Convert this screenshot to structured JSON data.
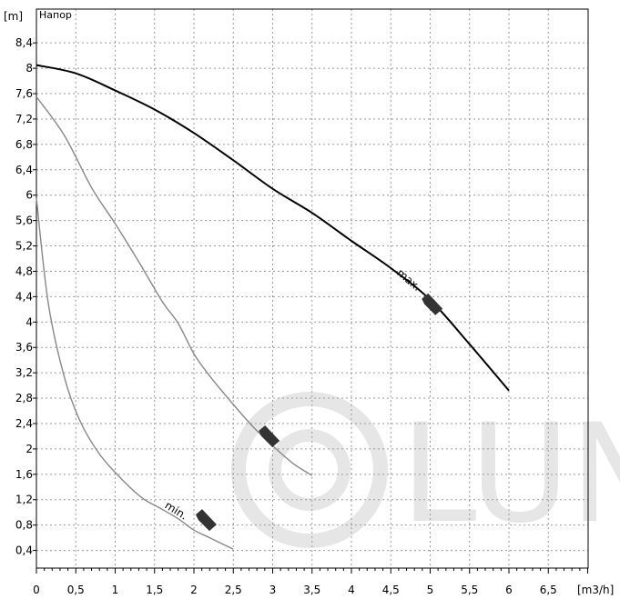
{
  "chart_data": {
    "type": "line",
    "title": "Напор",
    "y_unit": "[m]",
    "x_unit": "[m3/h]",
    "xlim": [
      0,
      7.0
    ],
    "ylim": [
      0,
      8.8
    ],
    "x_ticks": [
      {
        "value": 0,
        "label": "0"
      },
      {
        "value": 0.5,
        "label": "0,5"
      },
      {
        "value": 1,
        "label": "1"
      },
      {
        "value": 1.5,
        "label": "1,5"
      },
      {
        "value": 2,
        "label": "2"
      },
      {
        "value": 2.5,
        "label": "2,5"
      },
      {
        "value": 3,
        "label": "3"
      },
      {
        "value": 3.5,
        "label": "3,5"
      },
      {
        "value": 4,
        "label": "4"
      },
      {
        "value": 4.5,
        "label": "4,5"
      },
      {
        "value": 5,
        "label": "5"
      },
      {
        "value": 5.5,
        "label": "5,5"
      },
      {
        "value": 6,
        "label": "6"
      },
      {
        "value": 6.5,
        "label": "6,5"
      }
    ],
    "y_ticks": [
      {
        "value": 0.4,
        "label": "0,4"
      },
      {
        "value": 0.8,
        "label": "0,8"
      },
      {
        "value": 1.2,
        "label": "1,2"
      },
      {
        "value": 1.6,
        "label": "1,6"
      },
      {
        "value": 2,
        "label": "2"
      },
      {
        "value": 2.4,
        "label": "2,4"
      },
      {
        "value": 2.8,
        "label": "2,8"
      },
      {
        "value": 3.2,
        "label": "3,2"
      },
      {
        "value": 3.6,
        "label": "3,6"
      },
      {
        "value": 4,
        "label": "4"
      },
      {
        "value": 4.4,
        "label": "4,4"
      },
      {
        "value": 4.8,
        "label": "4,8"
      },
      {
        "value": 5.2,
        "label": "5,2"
      },
      {
        "value": 5.6,
        "label": "5,6"
      },
      {
        "value": 6,
        "label": "6"
      },
      {
        "value": 6.4,
        "label": "6,4"
      },
      {
        "value": 6.8,
        "label": "6,8"
      },
      {
        "value": 7.2,
        "label": "7,2"
      },
      {
        "value": 7.6,
        "label": "7,6"
      },
      {
        "value": 8,
        "label": "8"
      },
      {
        "value": 8.4,
        "label": "8,4"
      }
    ],
    "grid": true,
    "series": [
      {
        "name": "max.",
        "color": "#000000",
        "points": [
          [
            0,
            8.05
          ],
          [
            0.5,
            7.92
          ],
          [
            1,
            7.65
          ],
          [
            1.5,
            7.35
          ],
          [
            2,
            6.98
          ],
          [
            2.5,
            6.55
          ],
          [
            3,
            6.1
          ],
          [
            3.5,
            5.72
          ],
          [
            4,
            5.28
          ],
          [
            4.5,
            4.85
          ],
          [
            5,
            4.35
          ],
          [
            5.5,
            3.65
          ],
          [
            6,
            2.92
          ]
        ]
      },
      {
        "name": "",
        "color": "#888888",
        "points": [
          [
            0,
            7.55
          ],
          [
            0.35,
            6.95
          ],
          [
            0.7,
            6.12
          ],
          [
            1,
            5.55
          ],
          [
            1.3,
            4.95
          ],
          [
            1.6,
            4.32
          ],
          [
            1.8,
            3.98
          ],
          [
            2,
            3.5
          ],
          [
            2.2,
            3.15
          ],
          [
            2.5,
            2.7
          ],
          [
            2.75,
            2.35
          ],
          [
            3,
            2.05
          ],
          [
            3.25,
            1.78
          ],
          [
            3.5,
            1.58
          ]
        ]
      },
      {
        "name": "min.",
        "color": "#888888",
        "points": [
          [
            0,
            5.95
          ],
          [
            0.15,
            4.3
          ],
          [
            0.35,
            3.15
          ],
          [
            0.55,
            2.45
          ],
          [
            0.8,
            1.92
          ],
          [
            1.1,
            1.5
          ],
          [
            1.35,
            1.22
          ],
          [
            1.55,
            1.08
          ],
          [
            1.8,
            0.9
          ],
          [
            2,
            0.72
          ],
          [
            2.2,
            0.6
          ],
          [
            2.5,
            0.42
          ]
        ]
      }
    ],
    "annotations": [
      {
        "text": "max.",
        "x": 4.7,
        "y": 4.62,
        "rotation": 40
      },
      {
        "text": "min.",
        "x": 1.75,
        "y": 0.98,
        "rotation": 32
      }
    ],
    "markers": [
      {
        "x": 5.02,
        "y": 4.28,
        "color": "#333333"
      },
      {
        "x": 2.95,
        "y": 2.2,
        "color": "#333333"
      },
      {
        "x": 2.15,
        "y": 0.88,
        "color": "#333333"
      }
    ]
  },
  "watermark": {
    "text": "LUN",
    "color": "#e6e6e6"
  }
}
